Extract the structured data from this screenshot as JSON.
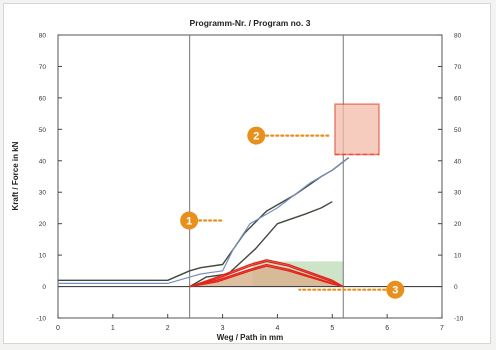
{
  "chart_data": {
    "type": "line",
    "title": "Programm-Nr. / Program no. 3",
    "xlabel": "Weg / Path in mm",
    "ylabel": "Kraft / Force in kN",
    "xlim": [
      0,
      7
    ],
    "ylim": [
      -10,
      80
    ],
    "x_ticks": [
      "0",
      "1",
      "2",
      "3",
      "4",
      "5",
      "6",
      "7"
    ],
    "y_ticks": [
      "-10",
      "0",
      "10",
      "20",
      "30",
      "40",
      "50",
      "60",
      "70",
      "80"
    ],
    "y2_ticks": [
      "-10",
      "0",
      "10",
      "20",
      "30",
      "40",
      "50",
      "60",
      "70",
      "80"
    ],
    "vertical_markers": [
      2.4,
      5.2
    ],
    "grid": false,
    "colors": {
      "envelope": "#3f4a3c",
      "measured": "#7b8fc0",
      "window_fill": "#f2bca9",
      "window_stroke": "#e4533a",
      "green_band": "#a5cd9a",
      "red_curves": "#e2261c",
      "area_fill": "#d8b48f",
      "callout": "#e8901d"
    },
    "series": [
      {
        "role": "upper-envelope",
        "x": [
          0,
          2.0,
          2.4,
          2.6,
          3.0,
          3.4,
          3.8,
          4.3,
          4.8,
          5.0,
          5.3
        ],
        "y": [
          2,
          2,
          5,
          6,
          7,
          17,
          24,
          29,
          35,
          37,
          41
        ]
      },
      {
        "role": "measured-curve",
        "x": [
          0,
          2.0,
          2.4,
          2.6,
          3.0,
          3.2,
          3.5,
          4.0,
          4.6,
          5.0,
          5.3
        ],
        "y": [
          1,
          1,
          3,
          4,
          5,
          12,
          20,
          25,
          33,
          37,
          41
        ]
      },
      {
        "role": "lower-envelope",
        "x": [
          2.4,
          2.7,
          3.1,
          3.6,
          4.0,
          4.5,
          4.8,
          5.0
        ],
        "y": [
          0,
          3,
          4,
          12,
          20,
          23,
          25,
          27
        ]
      },
      {
        "role": "red-curve-1",
        "x": [
          2.4,
          2.9,
          3.5,
          3.8,
          4.2,
          5.0,
          5.2
        ],
        "y": [
          0,
          3,
          7,
          8.5,
          7,
          2,
          0
        ]
      },
      {
        "role": "red-curve-2",
        "x": [
          2.4,
          2.9,
          3.5,
          3.8,
          4.2,
          5.0,
          5.2
        ],
        "y": [
          0,
          2.5,
          6.5,
          8,
          6.5,
          1.5,
          0
        ]
      },
      {
        "role": "red-curve-3",
        "x": [
          2.4,
          2.9,
          3.5,
          3.8,
          4.2,
          5.0,
          5.2
        ],
        "y": [
          0,
          2,
          5.5,
          7,
          5.5,
          1,
          0
        ]
      },
      {
        "role": "red-curve-4",
        "x": [
          2.4,
          2.9,
          3.5,
          3.8,
          4.2,
          5.0,
          5.2
        ],
        "y": [
          0,
          1.5,
          5,
          6.5,
          5,
          0.8,
          0
        ]
      }
    ],
    "area": {
      "x": [
        2.4,
        2.9,
        3.5,
        3.8,
        4.2,
        5.0,
        5.2
      ],
      "y": [
        0,
        1.5,
        5,
        6.5,
        5,
        0.8,
        0
      ]
    },
    "band": {
      "x1": 3.55,
      "x2": 5.2,
      "y1": 0,
      "y2": 8
    },
    "window": {
      "x1": 5.05,
      "x2": 5.85,
      "y1": 42,
      "y2": 58
    },
    "callouts": [
      {
        "label": "1",
        "x": 2.5,
        "y": 21
      },
      {
        "label": "2",
        "x": 5.0,
        "y": 48
      },
      {
        "label": "3",
        "x": 5.2,
        "y": -1
      }
    ]
  }
}
